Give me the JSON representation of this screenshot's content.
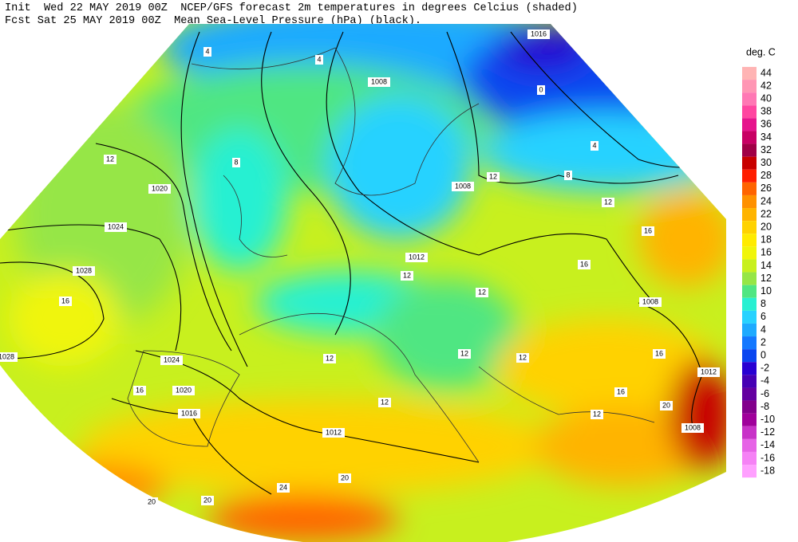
{
  "header": {
    "line1": "Init  Wed 22 MAY 2019 00Z  NCEP/GFS forecast 2m temperatures in degrees Celcius (shaded)",
    "line2": "Fcst Sat 25 MAY 2019 00Z  Mean Sea-Level Pressure (hPa) (black)."
  },
  "colorbar": {
    "unit": "deg. C",
    "entries": [
      {
        "label": "44",
        "color": "#ffb4b4"
      },
      {
        "label": "42",
        "color": "#ff96b4"
      },
      {
        "label": "40",
        "color": "#ff78b4"
      },
      {
        "label": "38",
        "color": "#ff46a0"
      },
      {
        "label": "36",
        "color": "#e6148c"
      },
      {
        "label": "34",
        "color": "#c80064"
      },
      {
        "label": "32",
        "color": "#a00046"
      },
      {
        "label": "30",
        "color": "#c80000"
      },
      {
        "label": "28",
        "color": "#ff1e00"
      },
      {
        "label": "26",
        "color": "#ff6400"
      },
      {
        "label": "24",
        "color": "#ff9100"
      },
      {
        "label": "22",
        "color": "#ffb400"
      },
      {
        "label": "20",
        "color": "#ffd200"
      },
      {
        "label": "18",
        "color": "#ffeb00"
      },
      {
        "label": "16",
        "color": "#f0f50a"
      },
      {
        "label": "14",
        "color": "#c8f01e"
      },
      {
        "label": "12",
        "color": "#96e646"
      },
      {
        "label": "10",
        "color": "#50e682"
      },
      {
        "label": "8",
        "color": "#28f0d2"
      },
      {
        "label": "6",
        "color": "#28d2ff"
      },
      {
        "label": "4",
        "color": "#1eaaff"
      },
      {
        "label": "2",
        "color": "#1478ff"
      },
      {
        "label": "0",
        "color": "#0a46f0"
      },
      {
        "label": "-2",
        "color": "#2800d2"
      },
      {
        "label": "-4",
        "color": "#4600b4"
      },
      {
        "label": "-6",
        "color": "#6400a0"
      },
      {
        "label": "-8",
        "color": "#82008c"
      },
      {
        "label": "-10",
        "color": "#a0009b"
      },
      {
        "label": "-12",
        "color": "#c832c8"
      },
      {
        "label": "-14",
        "color": "#e664e6"
      },
      {
        "label": "-16",
        "color": "#f582f5"
      },
      {
        "label": "-18",
        "color": "#ffa0ff"
      }
    ]
  },
  "map_labels": [
    "1016",
    "1008",
    "1020",
    "1024",
    "1028",
    "1012",
    "1008",
    "1024",
    "1020",
    "1016",
    "1012",
    "1008",
    "1012",
    "1008",
    "1028",
    "4",
    "4",
    "0",
    "4",
    "8",
    "12",
    "12",
    "16",
    "16",
    "16",
    "12",
    "8",
    "12",
    "12",
    "12",
    "12",
    "16",
    "16",
    "12",
    "20",
    "20",
    "20",
    "24",
    "20",
    "16",
    "12",
    "12"
  ]
}
